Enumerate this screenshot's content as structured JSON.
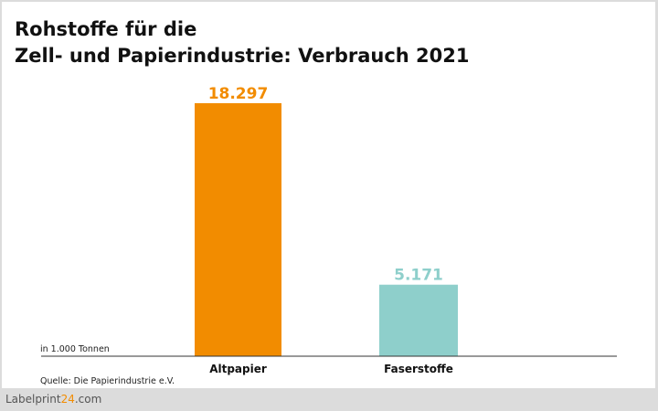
{
  "chart_data": {
    "type": "bar",
    "title": "Rohstoffe für die Zell- und Papierindustrie: Verbrauch 2021",
    "title_lines": [
      "Rohstoffe für die",
      "Zell- und Papierindustrie: Verbrauch 2021"
    ],
    "categories": [
      "Altpapier",
      "Faserstoffe"
    ],
    "values": [
      18297,
      5171
    ],
    "value_labels": [
      "18.297",
      "5.171"
    ],
    "colors": [
      "#f28c00",
      "#8ecfcb"
    ],
    "unit_label": "in 1.000 Tonnen",
    "ylim": [
      0,
      18297
    ],
    "grid": false
  },
  "source": "Quelle: Die Papierindustrie e.V.",
  "logo": {
    "part1": "Labelprint",
    "part2": "24",
    "part3": ".com"
  }
}
